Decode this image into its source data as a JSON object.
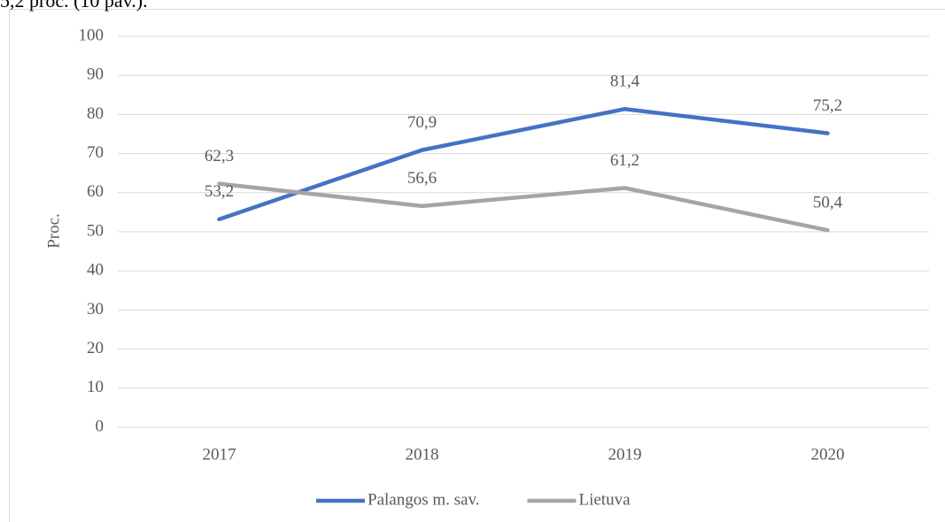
{
  "annotations": [
    "5,2 proc. (10 pav.)."
  ],
  "chart_data": {
    "type": "line",
    "y_label": "Proc.",
    "categories": [
      "2017",
      "2018",
      "2019",
      "2020"
    ],
    "series": [
      {
        "name": "Palangos m. sav.",
        "color": "#4472c4",
        "values": [
          53.2,
          70.9,
          81.4,
          75.2
        ],
        "value_labels": [
          "53,2",
          "70,9",
          "81,4",
          "75,2"
        ]
      },
      {
        "name": "Lietuva",
        "color": "#a5a5a5",
        "values": [
          62.3,
          56.6,
          61.2,
          50.4
        ],
        "value_labels": [
          "62,3",
          "56,6",
          "61,2",
          "50,4"
        ]
      }
    ],
    "ylim": [
      0,
      100
    ],
    "yticks": [
      0,
      10,
      20,
      30,
      40,
      50,
      60,
      70,
      80,
      90,
      100
    ],
    "grid": true,
    "legend": "bottom"
  }
}
